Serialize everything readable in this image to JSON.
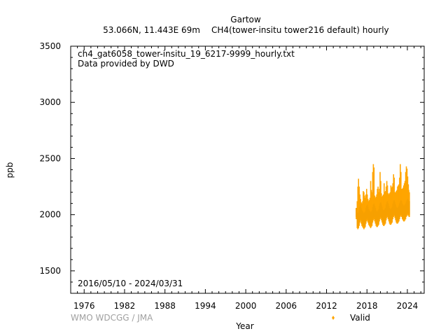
{
  "chart_data": {
    "type": "scatter",
    "title": "Gartow",
    "subtitle_left": "53.066N, 11.443E 69m",
    "subtitle_right": "CH4(tower-insitu tower216 default) hourly",
    "filename": "ch4_gat6058_tower-insitu_19_6217-9999_hourly.txt",
    "provider": "Data provided by DWD",
    "date_range": "2016/05/10 - 2024/03/31",
    "xlabel": "Year",
    "ylabel": "ppb",
    "xlim": [
      1974,
      2026.5
    ],
    "ylim": [
      1300,
      3500
    ],
    "xticks": [
      1976,
      1982,
      1988,
      1994,
      2000,
      2006,
      2012,
      2018,
      2024
    ],
    "xtick_labels": [
      "1976",
      "1982",
      "1988",
      "1994",
      "2000",
      "2006",
      "2012",
      "2018",
      "2024"
    ],
    "yticks": [
      1500,
      2000,
      2500,
      3000,
      3500
    ],
    "ytick_labels": [
      "1500",
      "2000",
      "2500",
      "3000",
      "3500"
    ],
    "grid": false,
    "legend_position": "bottom-right",
    "watermark": "WMO WDCGG / JMA",
    "series": [
      {
        "name": "Valid",
        "color": "#FFA500",
        "marker": "diamond",
        "x": [
          2016.36,
          2016.5,
          2016.6,
          2016.7,
          2016.8,
          2016.9,
          2017.0,
          2017.1,
          2017.2,
          2017.3,
          2017.4,
          2017.5,
          2017.6,
          2017.7,
          2017.8,
          2017.9,
          2018.0,
          2018.1,
          2018.2,
          2018.3,
          2018.4,
          2018.5,
          2018.6,
          2018.7,
          2018.8,
          2018.9,
          2019.0,
          2019.1,
          2019.2,
          2019.3,
          2019.4,
          2019.5,
          2019.6,
          2019.7,
          2019.8,
          2019.9,
          2020.0,
          2020.1,
          2020.2,
          2020.3,
          2020.4,
          2020.5,
          2020.6,
          2020.7,
          2020.8,
          2020.9,
          2021.0,
          2021.1,
          2021.2,
          2021.3,
          2021.4,
          2021.5,
          2021.6,
          2021.7,
          2021.8,
          2021.9,
          2022.0,
          2022.1,
          2022.2,
          2022.3,
          2022.4,
          2022.5,
          2022.6,
          2022.7,
          2022.8,
          2022.9,
          2023.0,
          2023.1,
          2023.2,
          2023.3,
          2023.4,
          2023.5,
          2023.6,
          2023.7,
          2023.8,
          2023.9,
          2024.0,
          2024.1,
          2024.2,
          2024.25
        ],
        "y_min": [
          1960,
          1880,
          1870,
          1880,
          1900,
          1930,
          1950,
          1920,
          1900,
          1890,
          1880,
          1870,
          1880,
          1890,
          1920,
          1940,
          1950,
          1930,
          1910,
          1900,
          1890,
          1880,
          1890,
          1900,
          1930,
          1950,
          1960,
          1940,
          1920,
          1900,
          1890,
          1890,
          1900,
          1910,
          1940,
          1960,
          1970,
          1950,
          1930,
          1910,
          1900,
          1900,
          1910,
          1920,
          1950,
          1970,
          1980,
          1960,
          1940,
          1920,
          1910,
          1910,
          1920,
          1930,
          1960,
          1980,
          1990,
          1970,
          1950,
          1930,
          1920,
          1920,
          1930,
          1940,
          1960,
          1980,
          1990,
          1980,
          1960,
          1950,
          1940,
          1940,
          1950,
          1960,
          1980,
          1990,
          2000,
          1990,
          1980,
          1980
        ],
        "y_max": [
          2060,
          2120,
          2250,
          2320,
          2250,
          2180,
          2140,
          2110,
          2100,
          2120,
          2210,
          2200,
          2170,
          2150,
          2180,
          2230,
          2180,
          2140,
          2120,
          2130,
          2150,
          2300,
          2220,
          2200,
          2380,
          2450,
          2420,
          2170,
          2150,
          2160,
          2180,
          2230,
          2250,
          2200,
          2230,
          2380,
          2300,
          2190,
          2160,
          2170,
          2180,
          2280,
          2200,
          2210,
          2250,
          2300,
          2260,
          2190,
          2180,
          2190,
          2200,
          2260,
          2240,
          2250,
          2280,
          2360,
          2330,
          2200,
          2200,
          2210,
          2220,
          2250,
          2260,
          2270,
          2330,
          2450,
          2380,
          2230,
          2230,
          2240,
          2260,
          2280,
          2300,
          2380,
          2430,
          2410,
          2340,
          2270,
          2220,
          2200
        ]
      }
    ]
  }
}
